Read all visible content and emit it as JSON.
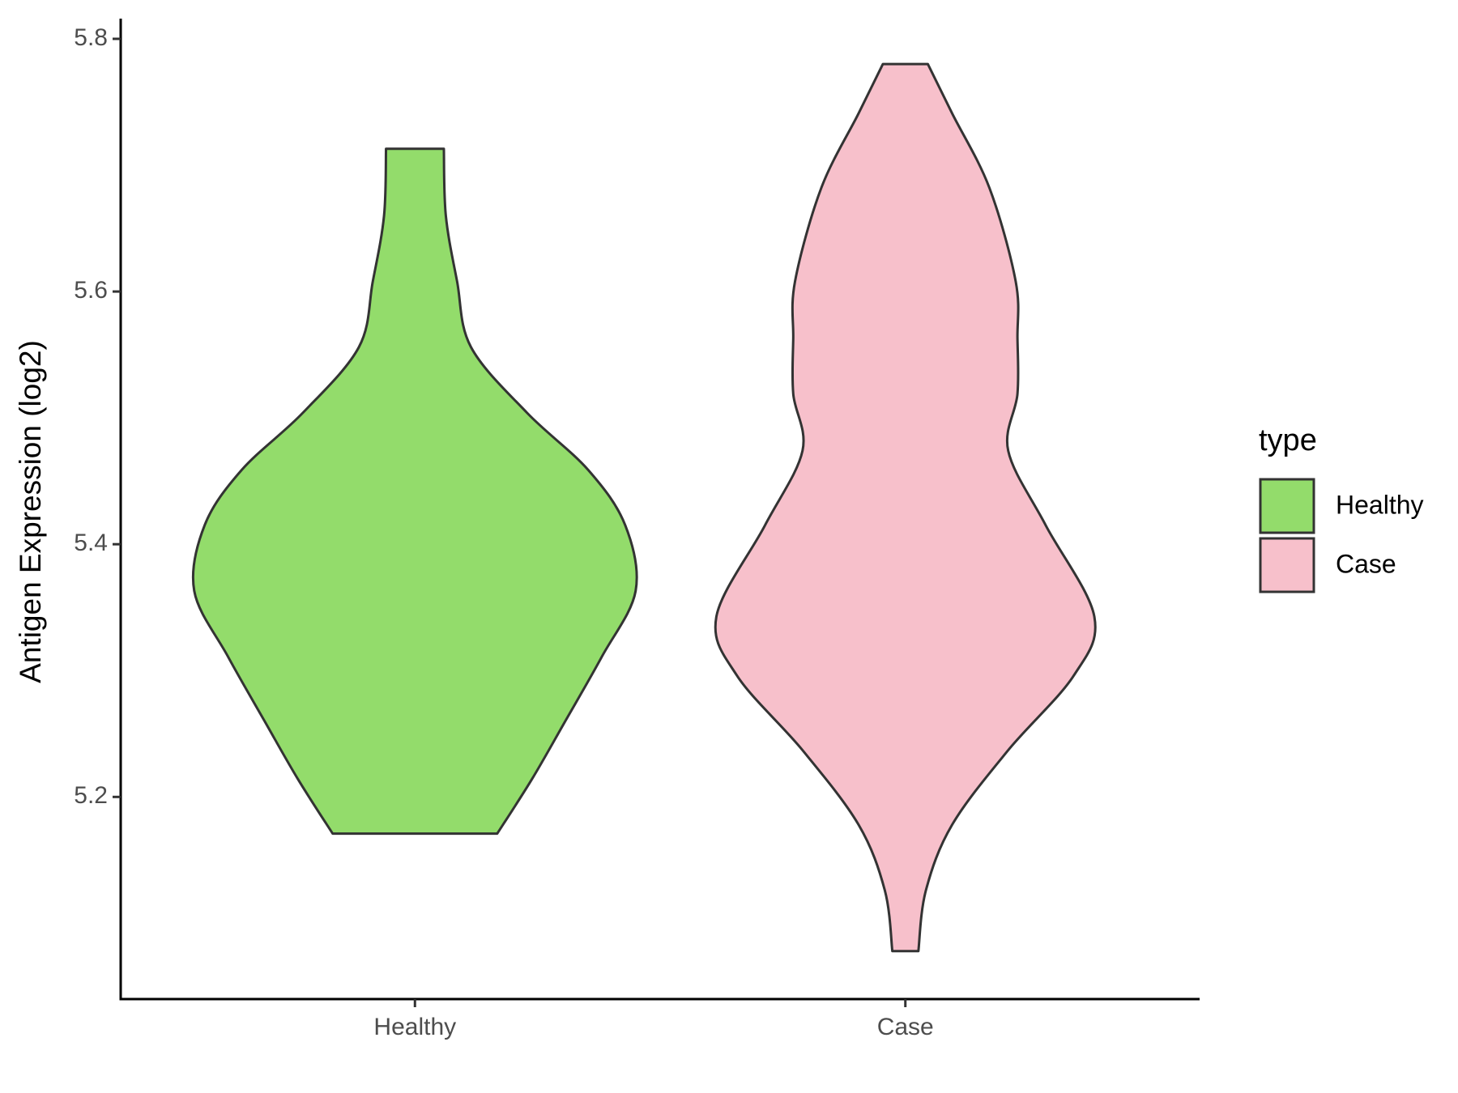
{
  "chart_data": {
    "type": "violin",
    "y_label": "Antigen Expression (log2)",
    "categories": [
      "Healthy",
      "Case"
    ],
    "legend_title": "type",
    "series": [
      {
        "name": "Healthy",
        "color": "#93dc6b",
        "y": [
          5.713,
          5.66,
          5.608,
          5.556,
          5.504,
          5.459,
          5.415,
          5.363,
          5.311,
          5.259,
          5.214,
          5.171
        ],
        "density": [
          0.131,
          0.14,
          0.191,
          0.254,
          0.508,
          0.784,
          0.953,
          1.0,
          0.847,
          0.678,
          0.53,
          0.373
        ]
      },
      {
        "name": "Case",
        "color": "#f7c0cb",
        "y": [
          5.78,
          5.741,
          5.682,
          5.608,
          5.563,
          5.519,
          5.474,
          5.415,
          5.343,
          5.296,
          5.237,
          5.178,
          5.126,
          5.078
        ],
        "density": [
          0.102,
          0.212,
          0.381,
          0.5,
          0.508,
          0.508,
          0.466,
          0.636,
          0.856,
          0.763,
          0.466,
          0.212,
          0.093,
          0.059
        ]
      }
    ],
    "ylim": [
      5.04,
      5.816
    ],
    "yticks": [
      5.2,
      5.4,
      5.6,
      5.8
    ]
  }
}
